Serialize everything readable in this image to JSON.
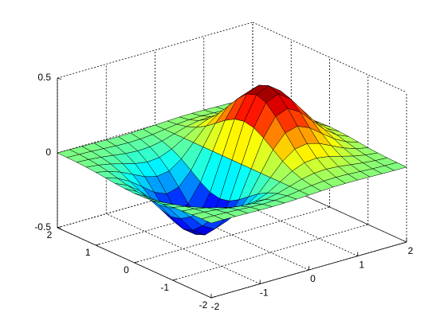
{
  "chart_data": {
    "type": "surface",
    "colormap": "jet",
    "grid": true,
    "x": [
      -2,
      -1.75,
      -1.5,
      -1.25,
      -1,
      -0.75,
      -0.5,
      -0.25,
      0,
      0.25,
      0.5,
      0.75,
      1,
      1.25,
      1.5,
      1.75,
      2
    ],
    "y": [
      -2,
      -1.75,
      -1.5,
      -1.25,
      -1,
      -0.75,
      -0.5,
      -0.25,
      0,
      0.25,
      0.5,
      0.75,
      1,
      1.25,
      1.5,
      1.75,
      2
    ],
    "z": [
      [
        -0.001,
        -0.001,
        -0.003,
        -0.005,
        -0.007,
        -0.008,
        -0.007,
        -0.004,
        0,
        0.004,
        0.007,
        0.008,
        0.007,
        0.005,
        0.003,
        0.001,
        0.001
      ],
      [
        -0.002,
        -0.004,
        -0.007,
        -0.012,
        -0.017,
        -0.02,
        -0.018,
        -0.011,
        0,
        0.011,
        0.018,
        0.02,
        0.017,
        0.012,
        0.007,
        0.004,
        0.002
      ],
      [
        -0.004,
        -0.009,
        -0.017,
        -0.028,
        -0.039,
        -0.045,
        -0.041,
        -0.025,
        0,
        0.025,
        0.041,
        0.045,
        0.039,
        0.028,
        0.017,
        0.009,
        0.004
      ],
      [
        -0.008,
        -0.017,
        -0.033,
        -0.055,
        -0.077,
        -0.09,
        -0.082,
        -0.049,
        0,
        0.049,
        0.082,
        0.09,
        0.077,
        0.055,
        0.033,
        0.017,
        0.008
      ],
      [
        -0.013,
        -0.03,
        -0.058,
        -0.096,
        -0.135,
        -0.157,
        -0.143,
        -0.086,
        0,
        0.086,
        0.143,
        0.157,
        0.135,
        0.096,
        0.058,
        0.03,
        0.013
      ],
      [
        -0.021,
        -0.047,
        -0.09,
        -0.149,
        -0.21,
        -0.244,
        -0.222,
        -0.134,
        0,
        0.134,
        0.222,
        0.244,
        0.21,
        0.149,
        0.09,
        0.047,
        0.021
      ],
      [
        -0.029,
        -0.064,
        -0.123,
        -0.204,
        -0.287,
        -0.333,
        -0.303,
        -0.183,
        0,
        0.183,
        0.303,
        0.333,
        0.287,
        0.204,
        0.123,
        0.064,
        0.029
      ],
      [
        -0.034,
        -0.077,
        -0.149,
        -0.246,
        -0.346,
        -0.401,
        -0.366,
        -0.221,
        0,
        0.221,
        0.366,
        0.401,
        0.346,
        0.246,
        0.149,
        0.077,
        0.034
      ],
      [
        -0.037,
        -0.082,
        -0.158,
        -0.262,
        -0.368,
        -0.427,
        -0.389,
        -0.235,
        0,
        0.235,
        0.389,
        0.427,
        0.368,
        0.262,
        0.158,
        0.082,
        0.037
      ],
      [
        -0.034,
        -0.077,
        -0.149,
        -0.246,
        -0.346,
        -0.401,
        -0.366,
        -0.221,
        0,
        0.221,
        0.366,
        0.401,
        0.346,
        0.246,
        0.149,
        0.077,
        0.034
      ],
      [
        -0.029,
        -0.064,
        -0.123,
        -0.204,
        -0.287,
        -0.333,
        -0.303,
        -0.183,
        0,
        0.183,
        0.303,
        0.333,
        0.287,
        0.204,
        0.123,
        0.064,
        0.029
      ],
      [
        -0.021,
        -0.047,
        -0.09,
        -0.149,
        -0.21,
        -0.244,
        -0.222,
        -0.134,
        0,
        0.134,
        0.222,
        0.244,
        0.21,
        0.149,
        0.09,
        0.047,
        0.021
      ],
      [
        -0.013,
        -0.03,
        -0.058,
        -0.096,
        -0.135,
        -0.157,
        -0.143,
        -0.086,
        0,
        0.086,
        0.143,
        0.157,
        0.135,
        0.096,
        0.058,
        0.03,
        0.013
      ],
      [
        -0.008,
        -0.017,
        -0.033,
        -0.055,
        -0.077,
        -0.09,
        -0.082,
        -0.049,
        0,
        0.049,
        0.082,
        0.09,
        0.077,
        0.055,
        0.033,
        0.017,
        0.008
      ],
      [
        -0.004,
        -0.009,
        -0.017,
        -0.028,
        -0.039,
        -0.045,
        -0.041,
        -0.025,
        0,
        0.025,
        0.041,
        0.045,
        0.039,
        0.028,
        0.017,
        0.009,
        0.004
      ],
      [
        -0.002,
        -0.004,
        -0.007,
        -0.012,
        -0.017,
        -0.02,
        -0.018,
        -0.011,
        0,
        0.011,
        0.018,
        0.02,
        0.017,
        0.012,
        0.007,
        0.004,
        0.002
      ],
      [
        -0.001,
        -0.001,
        -0.003,
        -0.005,
        -0.007,
        -0.008,
        -0.007,
        -0.004,
        0,
        0.004,
        0.007,
        0.008,
        0.007,
        0.005,
        0.003,
        0.001,
        0.001
      ]
    ],
    "xlim": [
      -2,
      2
    ],
    "ylim": [
      -2,
      2
    ],
    "zlim": [
      -0.5,
      0.5
    ],
    "xticks": [
      -2,
      -1,
      0,
      1,
      2
    ],
    "yticks": [
      -2,
      -1,
      0,
      1,
      2
    ],
    "zticks": [
      -0.5,
      0,
      0.5
    ]
  }
}
